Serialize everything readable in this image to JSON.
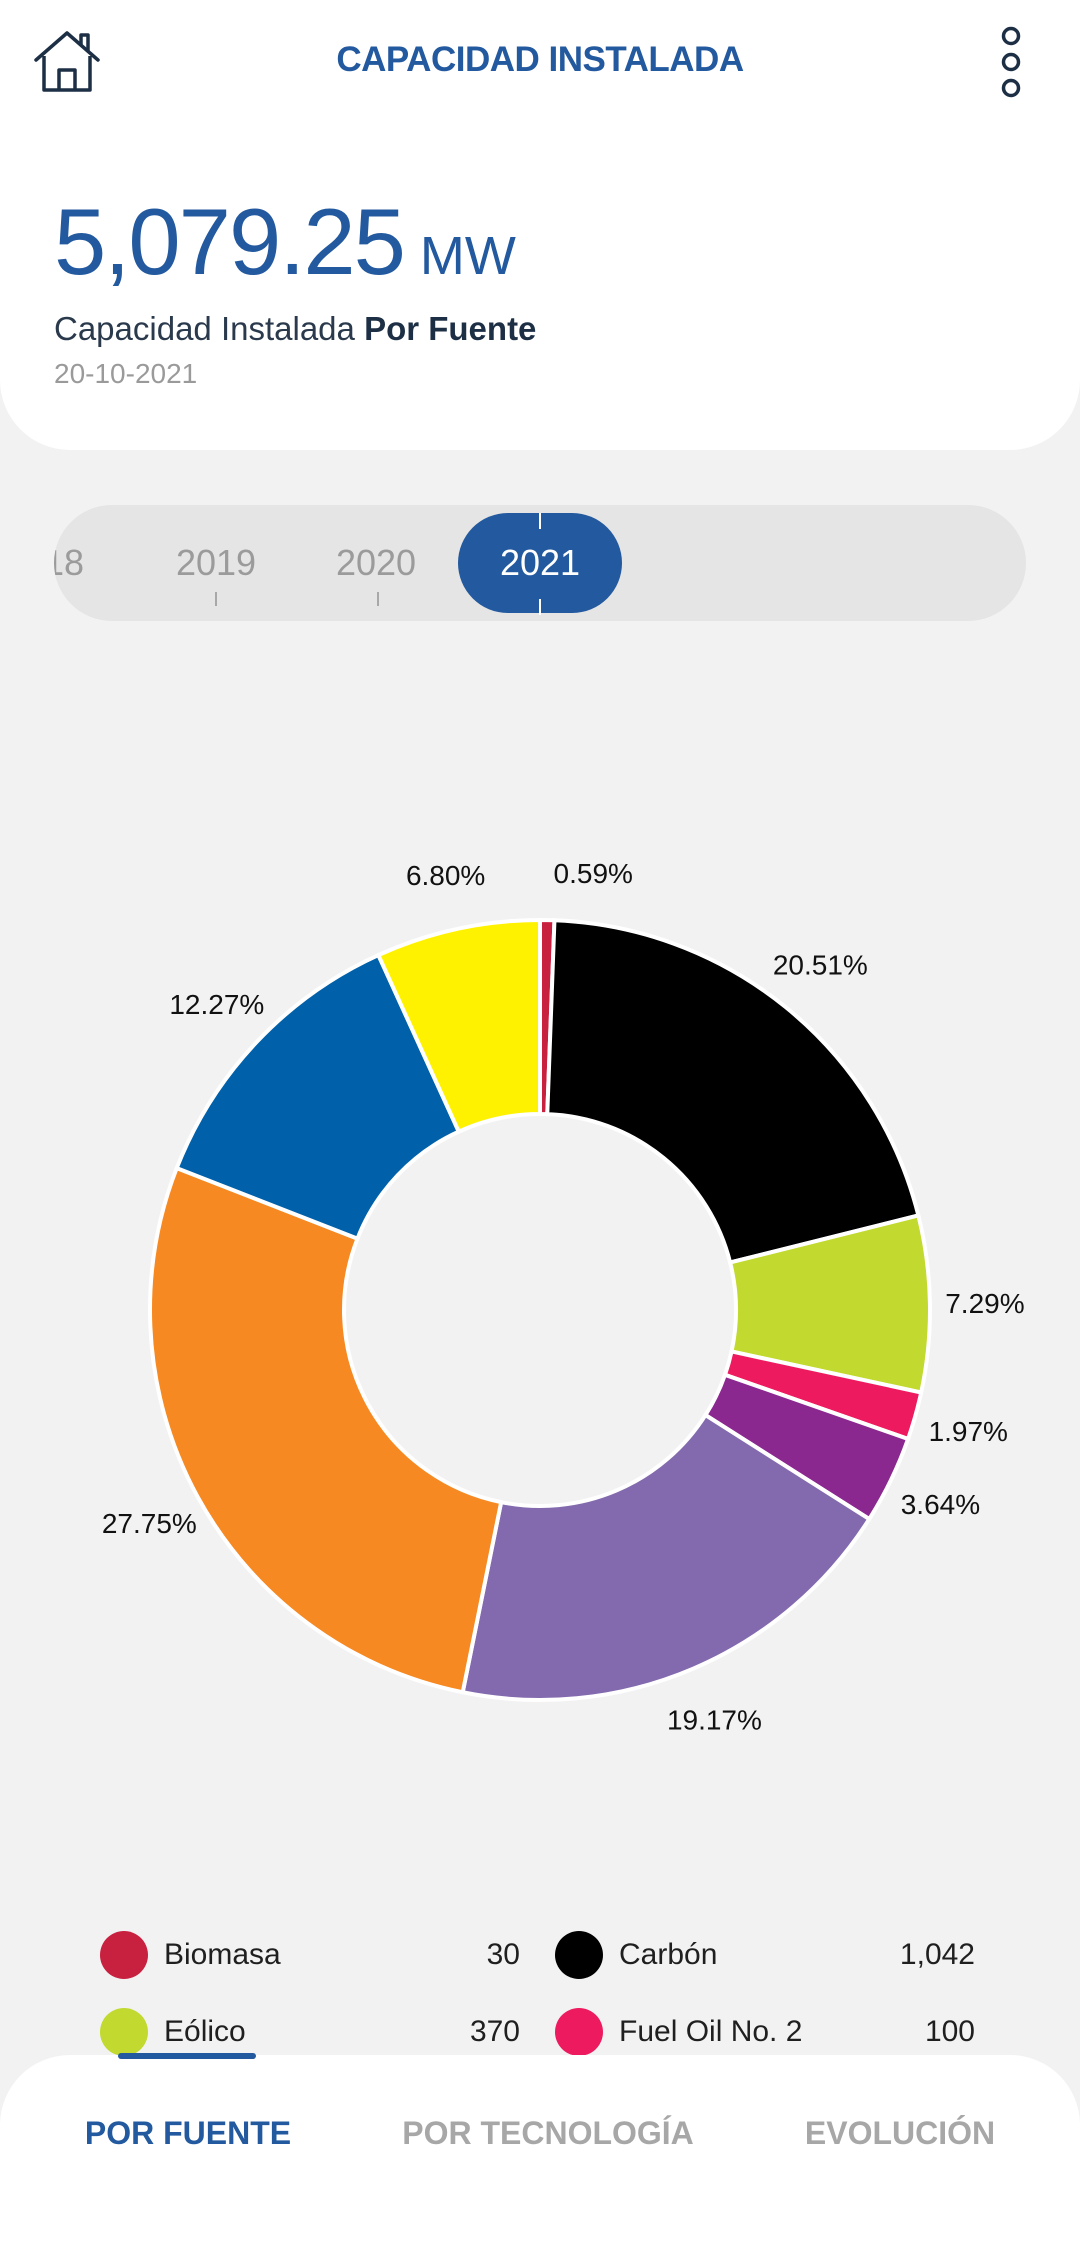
{
  "header": {
    "title": "CAPACIDAD INSTALADA",
    "home_icon": "home-icon",
    "menu_icon": "more-vertical-icon"
  },
  "summary": {
    "value": "5,079.25",
    "unit": "MW",
    "subtitle_prefix": "Capacidad Instalada",
    "subtitle_bold": "Por Fuente",
    "date": "20-10-2021"
  },
  "year_selector": {
    "years": [
      "18",
      "2019",
      "2020",
      "2021"
    ],
    "selected": "2021"
  },
  "chart_data": {
    "type": "pie",
    "donut": true,
    "slices": [
      {
        "label": "Biomasa",
        "value": 0.59,
        "color": "#c8203f"
      },
      {
        "label": "Carbón",
        "value": 20.51,
        "color": "#000000"
      },
      {
        "label": "Eólico",
        "value": 7.29,
        "color": "#c2d92f"
      },
      {
        "label": "Fuel Oil No. 2",
        "value": 1.97,
        "color": "#ee1a5f"
      },
      {
        "value": 3.64,
        "color": "#8b2890"
      },
      {
        "value": 19.17,
        "color": "#836aae"
      },
      {
        "value": 27.75,
        "color": "#f68921"
      },
      {
        "value": 12.27,
        "color": "#0060a9"
      },
      {
        "value": 6.8,
        "color": "#fff200"
      }
    ],
    "labels": [
      "0.59%",
      "20.51%",
      "7.29%",
      "1.97%",
      "3.64%",
      "19.17%",
      "27.75%",
      "12.27%",
      "6.80%"
    ]
  },
  "legend": [
    {
      "name": "Biomasa",
      "value": "30",
      "color": "#c8203f"
    },
    {
      "name": "Carbón",
      "value": "1,042",
      "color": "#000000"
    },
    {
      "name": "Eólico",
      "value": "370",
      "color": "#c2d92f"
    },
    {
      "name": "Fuel Oil No. 2",
      "value": "100",
      "color": "#ee1a5f"
    }
  ],
  "bottom_nav": {
    "tabs": [
      "POR FUENTE",
      "POR TECNOLOGÍA",
      "EVOLUCIÓN"
    ],
    "active": "POR FUENTE"
  }
}
